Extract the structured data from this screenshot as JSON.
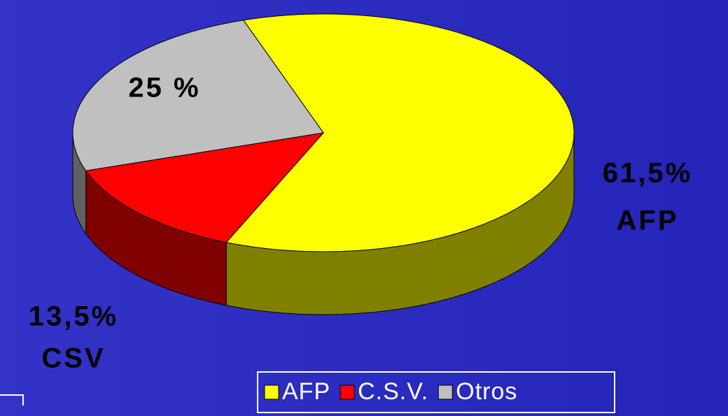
{
  "chart_data": {
    "type": "pie3d",
    "categories": [
      "AFP",
      "C.S.V.",
      "Otros"
    ],
    "values": [
      61.5,
      13.5,
      25
    ],
    "value_labels": [
      "61,5%",
      "13,5%",
      "25 %"
    ],
    "label_names": [
      "AFP",
      "CSV",
      null
    ],
    "colors": [
      "#ffff00",
      "#ff0000",
      "#c0c0c0"
    ],
    "side_colors": [
      "#808000",
      "#800000",
      "#606060"
    ],
    "legend": "bottom"
  }
}
